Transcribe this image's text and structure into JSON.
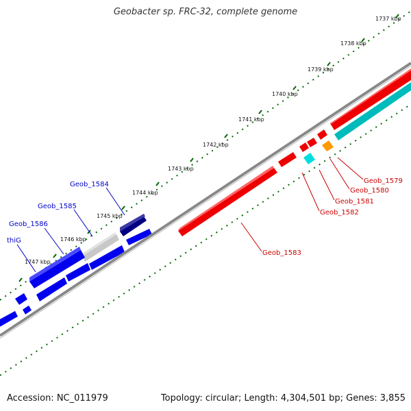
{
  "title": "Geobacter sp. FRC-32, complete genome",
  "footer": {
    "accession": "Accession: NC_011979",
    "summary": "Topology: circular; Length: 4,304,501 bp; Genes: 3,855"
  },
  "colors": {
    "forward_strand": "#0000ee",
    "reverse_strand": "#ee0000",
    "highlight_forward": "#000080",
    "gray_gene": "#c8c8c8",
    "rna_cyan": "#00dddd",
    "orange_gene": "#ff9900",
    "tick_green": "#006600",
    "backbone": "#888888"
  },
  "scale": {
    "ticks": [
      {
        "label": "1737 kbp"
      },
      {
        "label": "1738 kbp"
      },
      {
        "label": "1739 kbp"
      },
      {
        "label": "1740 kbp"
      },
      {
        "label": "1741 kbp"
      },
      {
        "label": "1742 kbp"
      },
      {
        "label": "1743 kbp"
      },
      {
        "label": "1744 kbp"
      },
      {
        "label": "1745 kbp"
      },
      {
        "label": "1746 kbp"
      },
      {
        "label": "1747 kbp"
      }
    ]
  },
  "gene_labels_forward": [
    {
      "label": "Geob_1584",
      "color": "#0000cc"
    },
    {
      "label": "Geob_1585",
      "color": "#0000cc"
    },
    {
      "label": "Geob_1586",
      "color": "#0000cc"
    },
    {
      "label": "thiG",
      "color": "#0000cc"
    }
  ],
  "gene_labels_reverse": [
    {
      "label": "Geob_1579",
      "color": "#cc0000"
    },
    {
      "label": "Geob_1580",
      "color": "#cc0000"
    },
    {
      "label": "Geob_1581",
      "color": "#cc0000"
    },
    {
      "label": "Geob_1582",
      "color": "#cc0000"
    },
    {
      "label": "Geob_1583",
      "color": "#cc0000"
    }
  ]
}
